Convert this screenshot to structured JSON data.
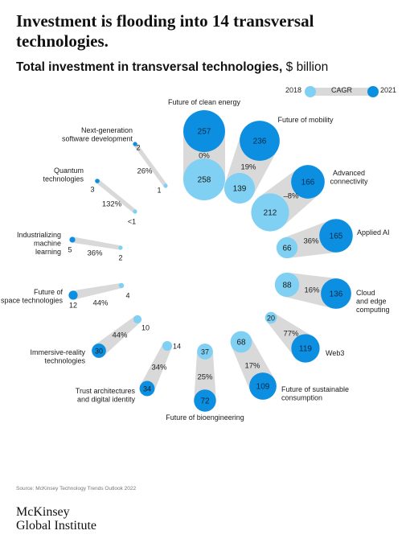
{
  "headline": "Investment is flooding into 14 transversal technologies.",
  "subtitle_bold": "Total investment in transversal technologies,",
  "subtitle_unit": "$ billion",
  "legend": {
    "label_2018": "2018",
    "label_cagr": "CAGR",
    "label_2021": "2021"
  },
  "colors": {
    "y2018": "#7fd0f3",
    "y2021": "#0c8fe0",
    "band": "#d9d9d9"
  },
  "source": "Source: McKinsey Technology Trends Outlook 2022",
  "logo": {
    "line1": "McKinsey",
    "line2": "Global Institute"
  },
  "chart_data": {
    "type": "bubble",
    "title": "Total investment in transversal technologies, $ billion",
    "series": [
      "2018",
      "CAGR",
      "2021"
    ],
    "items": [
      {
        "name": "Future of clean energy",
        "v2018": 258,
        "v2021": 257,
        "v2018_label": "258",
        "v2021_label": "257",
        "cagr": "0%"
      },
      {
        "name": "Future of mobility",
        "v2018": 139,
        "v2021": 236,
        "v2018_label": "139",
        "v2021_label": "236",
        "cagr": "19%"
      },
      {
        "name": "Advanced connectivity",
        "v2018": 212,
        "v2021": 166,
        "v2018_label": "212",
        "v2021_label": "166",
        "cagr": "–8%"
      },
      {
        "name": "Applied AI",
        "v2018": 66,
        "v2021": 165,
        "v2018_label": "66",
        "v2021_label": "165",
        "cagr": "36%"
      },
      {
        "name": "Cloud and edge computing",
        "v2018": 88,
        "v2021": 136,
        "v2018_label": "88",
        "v2021_label": "136",
        "cagr": "16%"
      },
      {
        "name": "Web3",
        "v2018": 20,
        "v2021": 119,
        "v2018_label": "20",
        "v2021_label": "119",
        "cagr": "77%"
      },
      {
        "name": "Future of sustainable consumption",
        "v2018": 68,
        "v2021": 109,
        "v2018_label": "68",
        "v2021_label": "109",
        "cagr": "17%"
      },
      {
        "name": "Future of bioengineering",
        "v2018": 37,
        "v2021": 72,
        "v2018_label": "37",
        "v2021_label": "72",
        "cagr": "25%"
      },
      {
        "name": "Trust architectures and digital identity",
        "v2018": 14,
        "v2021": 34,
        "v2018_label": "14",
        "v2021_label": "34",
        "cagr": "34%"
      },
      {
        "name": "Immersive-reality technologies",
        "v2018": 10,
        "v2021": 30,
        "v2018_label": "10",
        "v2021_label": "30",
        "cagr": "44%"
      },
      {
        "name": "Future of space technologies",
        "v2018": 4,
        "v2021": 12,
        "v2018_label": "4",
        "v2021_label": "12",
        "cagr": "44%"
      },
      {
        "name": "Industrializing machine learning",
        "v2018": 2,
        "v2021": 5,
        "v2018_label": "2",
        "v2021_label": "5",
        "cagr": "36%"
      },
      {
        "name": "Quantum technologies",
        "v2018": 0.5,
        "v2021": 3,
        "v2018_label": "<1",
        "v2021_label": "3",
        "cagr": "132%"
      },
      {
        "name": "Next-generation software development",
        "v2018": 1,
        "v2021": 2,
        "v2018_label": "1",
        "v2021_label": "2",
        "cagr": "26%"
      }
    ]
  }
}
